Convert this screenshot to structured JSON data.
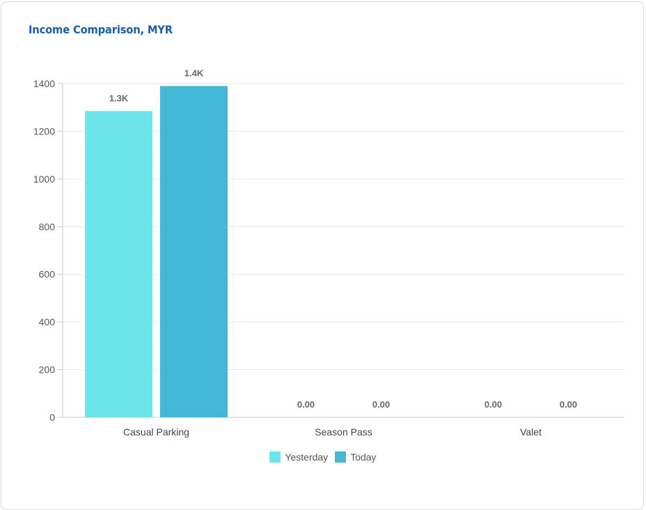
{
  "card": {
    "title": "Income Comparison, MYR"
  },
  "colors": {
    "yesterday": "#6ce5ea",
    "today": "#43b8d7",
    "title": "#1b5fa7",
    "grid": "#e6e6e6",
    "axis": "#c8c8c8"
  },
  "chart_data": {
    "type": "bar",
    "title": "Income Comparison, MYR",
    "xlabel": "",
    "ylabel": "",
    "categories": [
      "Casual Parking",
      "Season Pass",
      "Valet"
    ],
    "series": [
      {
        "name": "Yesterday",
        "values": [
          1285,
          0,
          0
        ],
        "labels": [
          "1.3K",
          "0.00",
          "0.00"
        ]
      },
      {
        "name": "Today",
        "values": [
          1390,
          0,
          0
        ],
        "labels": [
          "1.4K",
          "0.00",
          "0.00"
        ]
      }
    ],
    "ylim": [
      0,
      1400
    ],
    "yticks": [
      0,
      200,
      400,
      600,
      800,
      1000,
      1200,
      1400
    ],
    "grid": true,
    "legend_position": "bottom-center"
  }
}
